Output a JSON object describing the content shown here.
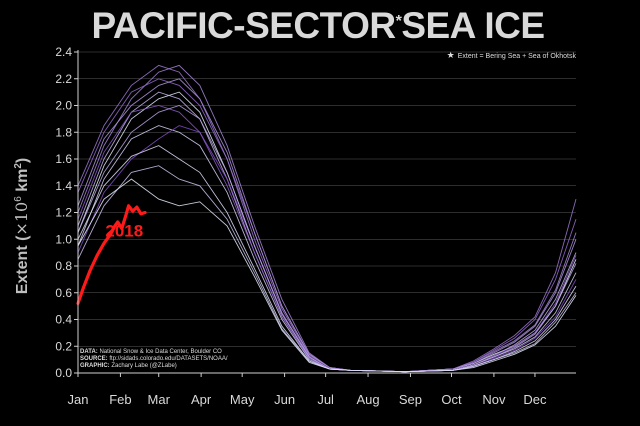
{
  "chart_data": {
    "type": "line",
    "title_part1": "PACIFIC-SECTOR",
    "title_star": "*",
    "title_part2": "SEA ICE",
    "note": "Extent = Bering Sea + Sea of Okhotsk",
    "note_star": "★",
    "ylabel_prefix": "Extent (",
    "ylabel_math": "×10",
    "ylabel_exp1": "6",
    "ylabel_km": " km",
    "ylabel_exp2": "2",
    "ylabel_suffix": ")",
    "ylim": [
      0,
      2.4
    ],
    "yticks": [
      0.0,
      0.2,
      0.4,
      0.6,
      0.8,
      1.0,
      1.2,
      1.4,
      1.6,
      1.8,
      2.0,
      2.2,
      2.4
    ],
    "ytick_labels": [
      "0.0",
      "0.2",
      "0.4",
      "0.6",
      "0.8",
      "1.0",
      "1.2",
      "1.4",
      "1.6",
      "1.8",
      "2.0",
      "2.2",
      "2.4"
    ],
    "xlim": [
      1,
      365
    ],
    "month_ticks": [
      1,
      32,
      60,
      91,
      121,
      152,
      182,
      213,
      244,
      274,
      305,
      335
    ],
    "month_labels": [
      "Jan",
      "Feb",
      "Mar",
      "Apr",
      "May",
      "Jun",
      "Jul",
      "Aug",
      "Sep",
      "Oct",
      "Nov",
      "Dec"
    ],
    "grid": true,
    "highlight": {
      "name": "2018",
      "color": "#ff1a1a",
      "x": [
        1,
        5,
        10,
        15,
        20,
        25,
        28,
        30,
        33,
        36,
        38,
        41,
        44,
        47,
        50
      ],
      "y": [
        0.52,
        0.64,
        0.77,
        0.88,
        0.97,
        1.04,
        1.1,
        1.13,
        1.08,
        1.18,
        1.25,
        1.21,
        1.24,
        1.19,
        1.2
      ]
    },
    "climatology_color_low": "#e8f0ff",
    "climatology_color_high": "#7a3fbf",
    "series": [
      {
        "x": [
          1,
          20,
          40,
          60,
          75,
          90,
          110,
          130,
          150,
          170,
          185,
          200,
          240,
          275,
          290,
          305,
          320,
          335,
          350,
          365
        ],
        "y": [
          1.05,
          1.55,
          1.9,
          2.05,
          2.1,
          1.95,
          1.5,
          0.95,
          0.45,
          0.12,
          0.03,
          0.02,
          0.01,
          0.03,
          0.07,
          0.14,
          0.2,
          0.3,
          0.5,
          0.85
        ]
      },
      {
        "x": [
          1,
          20,
          40,
          60,
          75,
          90,
          110,
          130,
          150,
          170,
          185,
          200,
          240,
          275,
          290,
          305,
          320,
          335,
          350,
          365
        ],
        "y": [
          1.2,
          1.7,
          2.05,
          2.25,
          2.3,
          2.15,
          1.7,
          1.1,
          0.55,
          0.15,
          0.04,
          0.02,
          0.01,
          0.03,
          0.08,
          0.16,
          0.24,
          0.36,
          0.62,
          1.05
        ]
      },
      {
        "x": [
          1,
          20,
          40,
          60,
          75,
          90,
          110,
          130,
          150,
          170,
          185,
          200,
          240,
          275,
          290,
          305,
          320,
          335,
          350,
          365
        ],
        "y": [
          0.95,
          1.45,
          1.75,
          1.85,
          1.8,
          1.7,
          1.35,
          0.85,
          0.4,
          0.1,
          0.03,
          0.02,
          0.01,
          0.02,
          0.06,
          0.12,
          0.18,
          0.27,
          0.45,
          0.75
        ]
      },
      {
        "x": [
          1,
          20,
          40,
          60,
          75,
          90,
          110,
          130,
          150,
          170,
          185,
          200,
          240,
          275,
          290,
          305,
          320,
          335,
          350,
          365
        ],
        "y": [
          1.35,
          1.8,
          2.1,
          2.2,
          2.15,
          2.0,
          1.6,
          1.05,
          0.5,
          0.14,
          0.04,
          0.02,
          0.01,
          0.03,
          0.08,
          0.17,
          0.26,
          0.4,
          0.7,
          1.15
        ]
      },
      {
        "x": [
          1,
          20,
          40,
          60,
          75,
          90,
          110,
          130,
          150,
          170,
          185,
          200,
          240,
          275,
          290,
          305,
          320,
          335,
          350,
          365
        ],
        "y": [
          1.1,
          1.6,
          1.95,
          2.1,
          2.05,
          1.9,
          1.45,
          0.9,
          0.42,
          0.11,
          0.03,
          0.02,
          0.01,
          0.02,
          0.06,
          0.13,
          0.21,
          0.32,
          0.55,
          0.9
        ]
      },
      {
        "x": [
          1,
          20,
          40,
          60,
          75,
          90,
          110,
          130,
          150,
          170,
          185,
          200,
          240,
          275,
          290,
          305,
          320,
          335,
          350,
          365
        ],
        "y": [
          0.9,
          1.35,
          1.6,
          1.75,
          1.85,
          1.8,
          1.45,
          0.95,
          0.45,
          0.12,
          0.03,
          0.02,
          0.01,
          0.02,
          0.05,
          0.11,
          0.17,
          0.26,
          0.42,
          0.7
        ]
      },
      {
        "x": [
          1,
          20,
          40,
          60,
          75,
          90,
          110,
          130,
          150,
          170,
          185,
          200,
          240,
          275,
          290,
          305,
          320,
          335,
          350,
          365
        ],
        "y": [
          1.25,
          1.75,
          2.0,
          2.15,
          2.2,
          2.05,
          1.65,
          1.05,
          0.5,
          0.14,
          0.04,
          0.02,
          0.01,
          0.03,
          0.07,
          0.15,
          0.23,
          0.35,
          0.6,
          1.0
        ]
      },
      {
        "x": [
          1,
          20,
          40,
          60,
          75,
          90,
          110,
          130,
          150,
          170,
          185,
          200,
          240,
          275,
          290,
          305,
          320,
          335,
          350,
          365
        ],
        "y": [
          1.0,
          1.4,
          1.62,
          1.7,
          1.6,
          1.5,
          1.2,
          0.78,
          0.35,
          0.09,
          0.03,
          0.02,
          0.01,
          0.02,
          0.05,
          0.1,
          0.16,
          0.24,
          0.4,
          0.65
        ]
      },
      {
        "x": [
          1,
          20,
          40,
          60,
          75,
          90,
          110,
          130,
          150,
          170,
          185,
          200,
          240,
          275,
          290,
          305,
          320,
          335,
          350,
          365
        ],
        "y": [
          1.4,
          1.85,
          2.15,
          2.3,
          2.25,
          2.05,
          1.6,
          1.0,
          0.48,
          0.13,
          0.04,
          0.02,
          0.01,
          0.03,
          0.09,
          0.18,
          0.28,
          0.42,
          0.75,
          1.3
        ]
      },
      {
        "x": [
          1,
          20,
          40,
          60,
          75,
          90,
          110,
          130,
          150,
          170,
          185,
          200,
          240,
          275,
          290,
          305,
          320,
          335,
          350,
          365
        ],
        "y": [
          0.85,
          1.25,
          1.5,
          1.55,
          1.45,
          1.4,
          1.15,
          0.75,
          0.33,
          0.09,
          0.03,
          0.02,
          0.01,
          0.02,
          0.05,
          0.1,
          0.15,
          0.22,
          0.38,
          0.6
        ]
      },
      {
        "x": [
          1,
          20,
          40,
          60,
          75,
          90,
          110,
          130,
          150,
          170,
          185,
          200,
          240,
          275,
          290,
          305,
          320,
          335,
          350,
          365
        ],
        "y": [
          1.15,
          1.65,
          1.95,
          2.0,
          1.95,
          1.8,
          1.4,
          0.9,
          0.42,
          0.11,
          0.03,
          0.02,
          0.01,
          0.02,
          0.06,
          0.13,
          0.2,
          0.3,
          0.52,
          0.88
        ]
      },
      {
        "x": [
          1,
          20,
          40,
          60,
          75,
          90,
          110,
          130,
          150,
          170,
          185,
          200,
          240,
          275,
          290,
          305,
          320,
          335,
          350,
          365
        ],
        "y": [
          1.05,
          1.5,
          1.8,
          1.95,
          2.0,
          1.9,
          1.5,
          0.95,
          0.44,
          0.12,
          0.03,
          0.02,
          0.01,
          0.02,
          0.06,
          0.12,
          0.19,
          0.29,
          0.5,
          0.82
        ]
      },
      {
        "x": [
          1,
          20,
          40,
          60,
          75,
          90,
          110,
          130,
          150,
          170,
          185,
          200,
          240,
          275,
          290,
          305,
          320,
          335,
          350,
          365
        ],
        "y": [
          0.95,
          1.3,
          1.45,
          1.3,
          1.25,
          1.28,
          1.1,
          0.72,
          0.32,
          0.08,
          0.03,
          0.02,
          0.01,
          0.02,
          0.04,
          0.09,
          0.14,
          0.21,
          0.35,
          0.58
        ]
      }
    ],
    "source_lines": [
      {
        "label": "DATA:",
        "text": " National Snow & Ice Data Center, Boulder CO"
      },
      {
        "label": "SOURCE:",
        "text": " ftp://sidads.colorado.edu/DATASETS/NOAA/"
      },
      {
        "label": "GRAPHIC:",
        "text": " Zachary Labe (@ZLabe)"
      }
    ]
  }
}
